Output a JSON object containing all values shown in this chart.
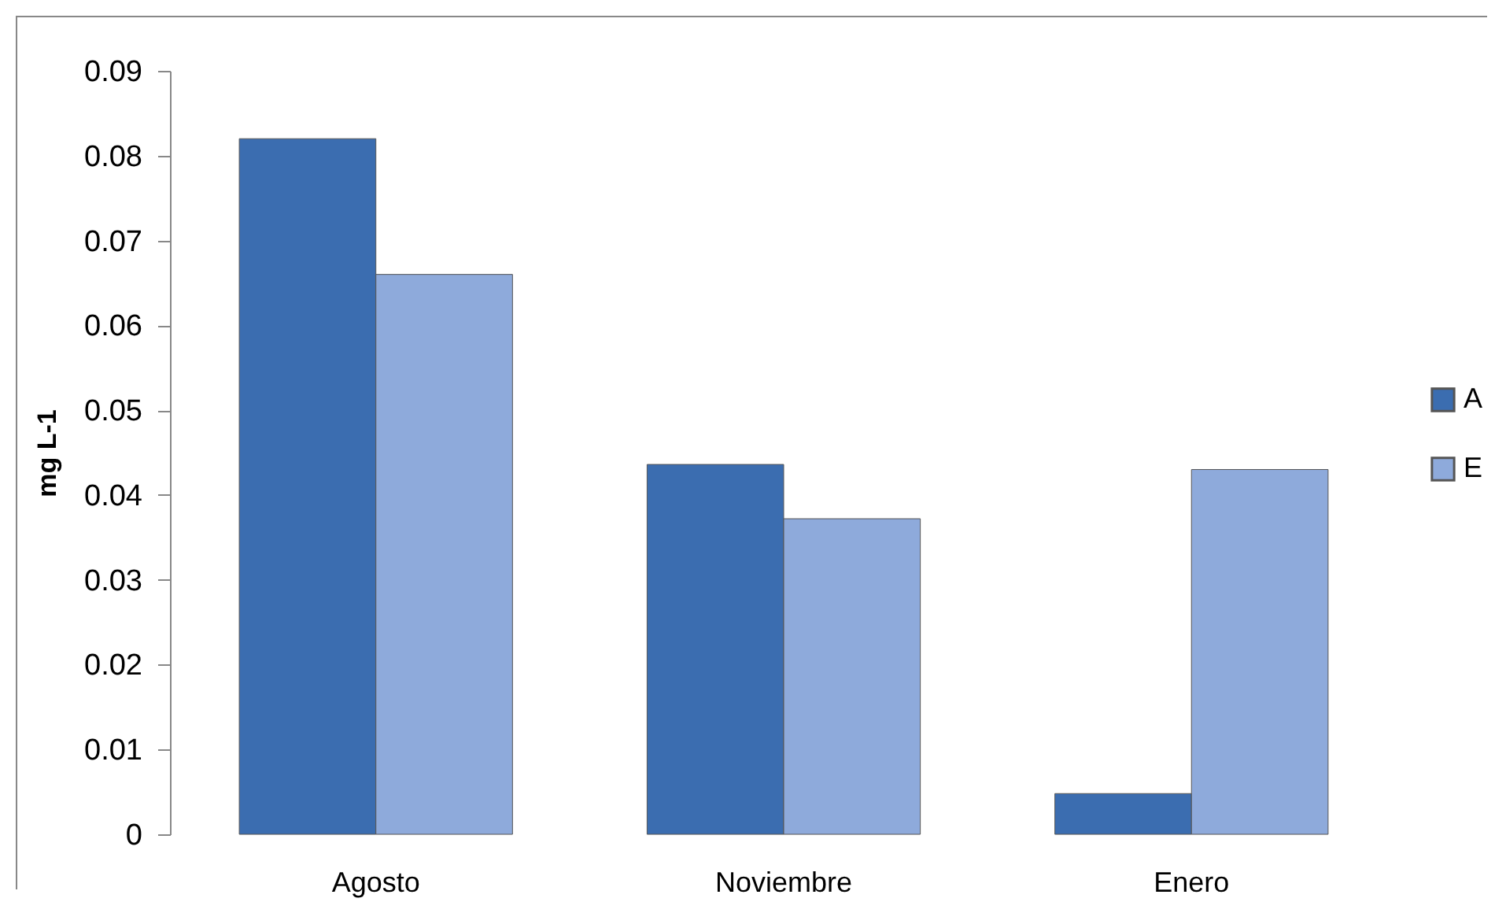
{
  "chart_data": {
    "type": "bar",
    "ylabel": "mg L-1",
    "categories": [
      "Agosto",
      "Noviembre",
      "Enero"
    ],
    "series": [
      {
        "name": "A",
        "color": "#3b6db0",
        "values": [
          0.082,
          0.0436,
          0.0048
        ]
      },
      {
        "name": "E",
        "color": "#8eaadb",
        "values": [
          0.066,
          0.0372,
          0.043
        ]
      }
    ],
    "ylim": [
      0,
      0.09
    ],
    "yticks": [
      0,
      0.01,
      0.02,
      0.03,
      0.04,
      0.05,
      0.06,
      0.07,
      0.08,
      0.09
    ],
    "legend": "right"
  }
}
